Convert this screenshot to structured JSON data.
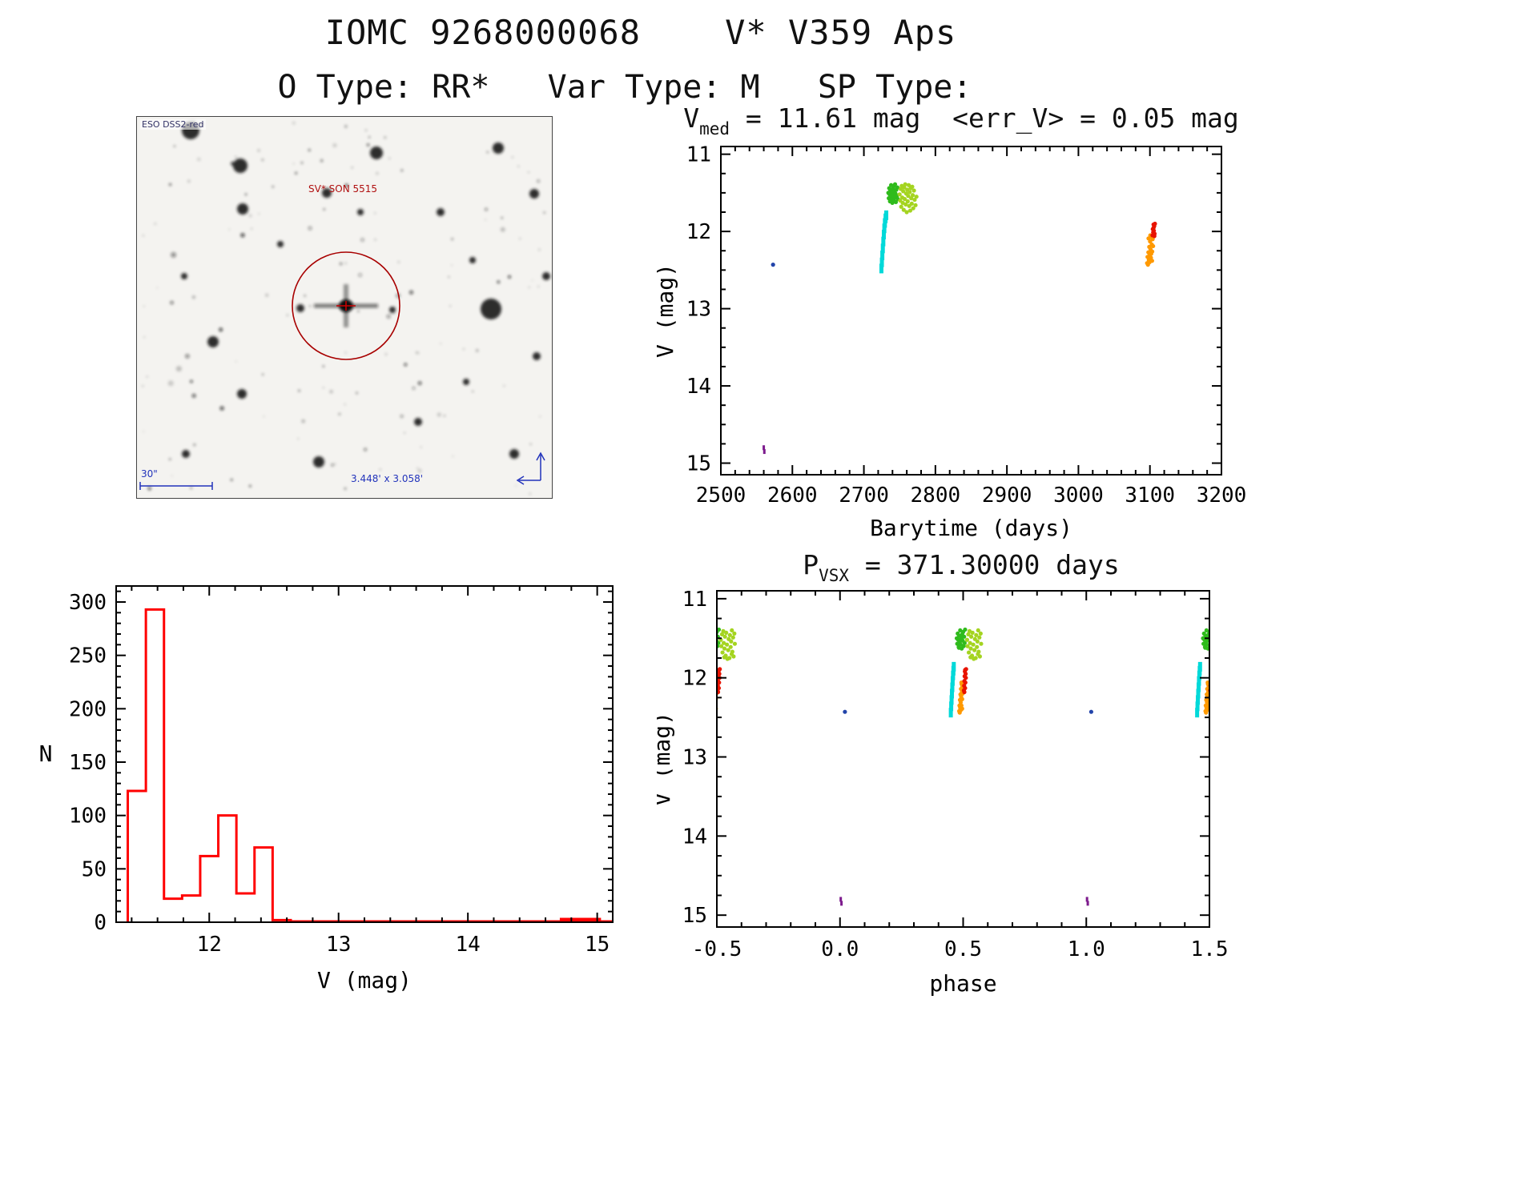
{
  "header": {
    "title": "IOMC 9268000068    V* V359 Aps",
    "subtitle": "O Type: RR*   Var Type: M   SP Type:"
  },
  "finder": {
    "survey_label": "ESO DSS2-red",
    "target_label": "SV* SON 5515",
    "scale_label": "30\"",
    "fov_label": "3.448' x 3.058'",
    "circle_color": "#a80000"
  },
  "chart_data": [
    {
      "id": "lightcurve",
      "type": "scatter",
      "title_lead": "V",
      "title_sub": "med",
      "title_rest": " = 11.61 mag  <err_V> = 0.05 mag",
      "xlabel": "Barytime (days)",
      "ylabel": "V (mag)",
      "xlim": [
        2500,
        3200
      ],
      "ytop": 10.9,
      "ybottom": 15.15,
      "xtick_values": [
        2500,
        2600,
        2700,
        2800,
        2900,
        3000,
        3100,
        3200
      ],
      "xtick_labels": [
        "2500",
        "2600",
        "2700",
        "2800",
        "2900",
        "3000",
        "3100",
        "3200"
      ],
      "ytick_values": [
        11,
        12,
        13,
        14,
        15
      ],
      "ytick_labels": [
        "11",
        "12",
        "13",
        "14",
        "15"
      ],
      "xminor": 20,
      "yminor": 0.25,
      "series": [
        {
          "name": "epoch-blue",
          "color": "#2244aa",
          "marker": "dot",
          "size": 2.6,
          "points": [
            [
              2573,
              12.43
            ]
          ]
        },
        {
          "name": "epoch-purple",
          "color": "#7d1b8d",
          "marker": "vdash",
          "mw": 3,
          "mh": 6,
          "points": [
            [
              2560,
              14.8
            ],
            [
              2560.8,
              14.85
            ]
          ]
        },
        {
          "name": "epoch-cyan",
          "color": "#00d9d9",
          "marker": "vdash",
          "mw": 5,
          "mh": 12,
          "points": [
            [
              2724.5,
              12.48
            ],
            [
              2725.2,
              12.4
            ],
            [
              2725.8,
              12.31
            ],
            [
              2726.5,
              12.22
            ],
            [
              2727.2,
              12.13
            ],
            [
              2727.9,
              12.04
            ],
            [
              2728.6,
              11.96
            ],
            [
              2729.4,
              11.89
            ],
            [
              2730.3,
              11.83
            ],
            [
              2731.3,
              11.79
            ]
          ]
        },
        {
          "name": "epoch-green",
          "color": "#2fbb1c",
          "marker": "dot",
          "size": 2.6,
          "points": [
            [
              2734.2,
              11.5
            ],
            [
              2734.8,
              11.57
            ],
            [
              2735.4,
              11.44
            ],
            [
              2736.0,
              11.52
            ],
            [
              2736.5,
              11.61
            ],
            [
              2737.0,
              11.47
            ],
            [
              2737.6,
              11.55
            ],
            [
              2738.1,
              11.4
            ],
            [
              2738.7,
              11.58
            ],
            [
              2739.2,
              11.49
            ],
            [
              2739.8,
              11.63
            ],
            [
              2740.3,
              11.45
            ],
            [
              2740.9,
              11.53
            ],
            [
              2741.4,
              11.42
            ],
            [
              2742.0,
              11.6
            ],
            [
              2742.5,
              11.48
            ],
            [
              2743.1,
              11.56
            ],
            [
              2743.6,
              11.39
            ],
            [
              2744.2,
              11.51
            ],
            [
              2744.7,
              11.62
            ],
            [
              2745.3,
              11.46
            ],
            [
              2746.0,
              11.54
            ],
            [
              2746.8,
              11.43
            ],
            [
              2747.5,
              11.58
            ]
          ]
        },
        {
          "name": "epoch-yellowgreen",
          "color": "#a4d420",
          "marker": "dot",
          "size": 2.6,
          "points": [
            [
              2750.0,
              11.52
            ],
            [
              2750.8,
              11.6
            ],
            [
              2751.5,
              11.45
            ],
            [
              2752.2,
              11.68
            ],
            [
              2752.9,
              11.41
            ],
            [
              2753.6,
              11.56
            ],
            [
              2754.3,
              11.63
            ],
            [
              2755.0,
              11.48
            ],
            [
              2755.7,
              11.72
            ],
            [
              2756.4,
              11.43
            ],
            [
              2757.1,
              11.58
            ],
            [
              2757.8,
              11.39
            ],
            [
              2758.5,
              11.65
            ],
            [
              2759.2,
              11.51
            ],
            [
              2759.9,
              11.75
            ],
            [
              2760.6,
              11.46
            ],
            [
              2761.3,
              11.61
            ],
            [
              2762.0,
              11.54
            ],
            [
              2762.7,
              11.4
            ],
            [
              2763.4,
              11.67
            ],
            [
              2764.1,
              11.49
            ],
            [
              2764.8,
              11.73
            ],
            [
              2765.5,
              11.44
            ],
            [
              2766.2,
              11.57
            ],
            [
              2766.9,
              11.64
            ],
            [
              2767.6,
              11.42
            ],
            [
              2768.3,
              11.53
            ],
            [
              2769.0,
              11.7
            ],
            [
              2770.0,
              11.47
            ],
            [
              2771.0,
              11.59
            ],
            [
              2772.2,
              11.66
            ],
            [
              2773.5,
              11.55
            ]
          ]
        },
        {
          "name": "epoch-orange",
          "color": "#ff9900",
          "marker": "dot",
          "size": 2.6,
          "points": [
            [
              3096.0,
              12.41
            ],
            [
              3096.6,
              12.33
            ],
            [
              3097.2,
              12.43
            ],
            [
              3097.8,
              12.27
            ],
            [
              3098.4,
              12.37
            ],
            [
              3099.0,
              12.2
            ],
            [
              3099.6,
              12.3
            ],
            [
              3100.2,
              12.13
            ],
            [
              3100.8,
              12.23
            ],
            [
              3101.4,
              12.34
            ],
            [
              3102.0,
              12.07
            ],
            [
              3102.6,
              12.17
            ],
            [
              3103.2,
              12.26
            ],
            [
              3103.8,
              12.1
            ],
            [
              3104.4,
              12.19
            ],
            [
              3099.3,
              12.4
            ],
            [
              3100.5,
              12.05
            ],
            [
              3101.8,
              12.29
            ],
            [
              3103.0,
              12.38
            ],
            [
              3098.0,
              12.09
            ]
          ]
        },
        {
          "name": "epoch-red",
          "color": "#e81300",
          "marker": "dot",
          "size": 2.6,
          "points": [
            [
              3103.5,
              12.05
            ],
            [
              3104.0,
              11.97
            ],
            [
              3104.5,
              12.01
            ],
            [
              3105.0,
              11.91
            ],
            [
              3105.5,
              11.99
            ],
            [
              3106.0,
              11.93
            ],
            [
              3106.5,
              12.03
            ],
            [
              3105.2,
              11.95
            ],
            [
              3106.2,
              12.06
            ],
            [
              3107.0,
              11.9
            ]
          ]
        }
      ]
    },
    {
      "id": "histogram",
      "type": "histogram",
      "color": "#ff0000",
      "xlabel": "V (mag)",
      "ylabel": "N",
      "ylabel_upright": true,
      "xlim": [
        11.28,
        15.12
      ],
      "ytop": 315,
      "ybottom": 0,
      "xtick_values": [
        12,
        13,
        14,
        15
      ],
      "xtick_labels": [
        "12",
        "13",
        "14",
        "15"
      ],
      "ytick_values": [
        0,
        50,
        100,
        150,
        200,
        250,
        300
      ],
      "ytick_labels": [
        "0",
        "50",
        "100",
        "150",
        "200",
        "250",
        "300"
      ],
      "xminor": 0.2,
      "yminor": 10,
      "bin_edges": [
        11.37,
        11.51,
        11.65,
        11.79,
        11.93,
        12.07,
        12.21,
        12.35,
        12.49,
        12.63
      ],
      "counts": [
        123,
        293,
        22,
        25,
        62,
        100,
        27,
        70,
        2
      ],
      "extra_bins": {
        "edges": [
          14.72,
          15.02
        ],
        "counts": [
          3
        ]
      },
      "baseline_end": 15.12
    },
    {
      "id": "phase",
      "type": "scatter",
      "title_lead": "P",
      "title_sub": "VSX",
      "title_rest": " = 371.30000 days",
      "xlabel": "phase",
      "ylabel": "V (mag)",
      "xlim": [
        -0.5,
        1.5
      ],
      "ytop": 10.9,
      "ybottom": 15.15,
      "xtick_values": [
        -0.5,
        0,
        0.5,
        1,
        1.5
      ],
      "xtick_labels": [
        "-0.5",
        "0.0",
        "0.5",
        "1.0",
        "1.5"
      ],
      "ytick_values": [
        11,
        12,
        13,
        14,
        15
      ],
      "ytick_labels": [
        "11",
        "12",
        "13",
        "14",
        "15"
      ],
      "xminor": 0.1,
      "yminor": 0.25,
      "repeat_offsets": [
        -1,
        0,
        1
      ],
      "series": [
        {
          "name": "epoch-blue",
          "color": "#2244aa",
          "marker": "dot",
          "size": 2.6,
          "points": [
            [
              0.02,
              12.43
            ]
          ]
        },
        {
          "name": "epoch-purple",
          "color": "#7d1b8d",
          "marker": "vdash",
          "mw": 3,
          "mh": 6,
          "points": [
            [
              0.003,
              14.8
            ],
            [
              0.006,
              14.85
            ]
          ]
        },
        {
          "name": "epoch-cyan",
          "color": "#00d9d9",
          "marker": "vdash",
          "mw": 5,
          "mh": 12,
          "points": [
            [
              0.45,
              12.44
            ],
            [
              0.4515,
              12.36
            ],
            [
              0.453,
              12.28
            ],
            [
              0.4545,
              12.2
            ],
            [
              0.456,
              12.12
            ],
            [
              0.4575,
              12.04
            ],
            [
              0.459,
              11.97
            ],
            [
              0.4605,
              11.91
            ],
            [
              0.462,
              11.86
            ]
          ]
        },
        {
          "name": "epoch-green",
          "color": "#2fbb1c",
          "marker": "dot",
          "size": 2.6,
          "points": [
            [
              0.474,
              11.5
            ],
            [
              0.476,
              11.57
            ],
            [
              0.478,
              11.44
            ],
            [
              0.48,
              11.52
            ],
            [
              0.482,
              11.61
            ],
            [
              0.484,
              11.47
            ],
            [
              0.486,
              11.55
            ],
            [
              0.488,
              11.4
            ],
            [
              0.49,
              11.58
            ],
            [
              0.492,
              11.49
            ],
            [
              0.494,
              11.63
            ],
            [
              0.496,
              11.45
            ],
            [
              0.498,
              11.53
            ],
            [
              0.5,
              11.42
            ],
            [
              0.502,
              11.6
            ],
            [
              0.504,
              11.48
            ],
            [
              0.506,
              11.56
            ],
            [
              0.508,
              11.39
            ],
            [
              0.493,
              11.51
            ],
            [
              0.483,
              11.62
            ]
          ]
        },
        {
          "name": "epoch-yellowgreen",
          "color": "#a4d420",
          "marker": "dot",
          "size": 2.6,
          "points": [
            [
              0.516,
              11.52
            ],
            [
              0.518,
              11.6
            ],
            [
              0.521,
              11.45
            ],
            [
              0.523,
              11.68
            ],
            [
              0.526,
              11.41
            ],
            [
              0.528,
              11.56
            ],
            [
              0.531,
              11.63
            ],
            [
              0.533,
              11.48
            ],
            [
              0.536,
              11.72
            ],
            [
              0.538,
              11.43
            ],
            [
              0.541,
              11.58
            ],
            [
              0.543,
              11.76
            ],
            [
              0.546,
              11.65
            ],
            [
              0.548,
              11.51
            ],
            [
              0.551,
              11.75
            ],
            [
              0.553,
              11.46
            ],
            [
              0.556,
              11.61
            ],
            [
              0.558,
              11.54
            ],
            [
              0.561,
              11.4
            ],
            [
              0.563,
              11.67
            ],
            [
              0.566,
              11.49
            ],
            [
              0.568,
              11.73
            ],
            [
              0.571,
              11.44
            ],
            [
              0.573,
              11.57
            ],
            [
              0.56,
              11.7
            ],
            [
              0.53,
              11.74
            ]
          ]
        },
        {
          "name": "epoch-orange",
          "color": "#ff9900",
          "marker": "dot",
          "size": 2.6,
          "points": [
            [
              0.484,
              12.42
            ],
            [
              0.485,
              12.35
            ],
            [
              0.486,
              12.44
            ],
            [
              0.487,
              12.28
            ],
            [
              0.488,
              12.38
            ],
            [
              0.489,
              12.21
            ],
            [
              0.49,
              12.31
            ],
            [
              0.491,
              12.14
            ],
            [
              0.492,
              12.24
            ],
            [
              0.493,
              12.35
            ],
            [
              0.494,
              12.08
            ],
            [
              0.495,
              12.18
            ],
            [
              0.496,
              12.27
            ],
            [
              0.497,
              12.11
            ],
            [
              0.498,
              12.2
            ],
            [
              0.49,
              12.41
            ],
            [
              0.493,
              12.06
            ],
            [
              0.496,
              12.39
            ]
          ]
        },
        {
          "name": "epoch-red",
          "color": "#e81300",
          "marker": "dot",
          "size": 2.6,
          "points": [
            [
              0.503,
              12.16
            ],
            [
              0.504,
              12.1
            ],
            [
              0.505,
              12.04
            ],
            [
              0.506,
              11.98
            ],
            [
              0.507,
              11.92
            ],
            [
              0.508,
              12.13
            ],
            [
              0.509,
              12.06
            ],
            [
              0.51,
              11.95
            ],
            [
              0.511,
              12.0
            ],
            [
              0.512,
              11.89
            ],
            [
              0.505,
              12.18
            ],
            [
              0.508,
              11.9
            ]
          ]
        }
      ]
    }
  ]
}
